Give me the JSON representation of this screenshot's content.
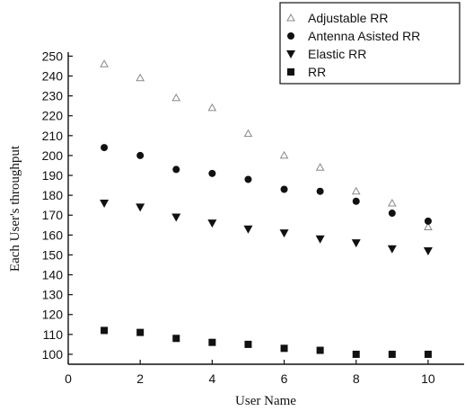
{
  "chart_data": {
    "type": "scatter",
    "title": "",
    "xlabel": "User Name",
    "ylabel": "Each User's throughput",
    "xlim": [
      0,
      11
    ],
    "ylim": [
      95,
      252
    ],
    "x_ticks": [
      0,
      2,
      4,
      6,
      8,
      10
    ],
    "y_ticks": [
      100,
      110,
      120,
      130,
      140,
      150,
      160,
      170,
      180,
      190,
      200,
      210,
      220,
      230,
      240,
      250
    ],
    "x": [
      1,
      2,
      3,
      4,
      5,
      6,
      7,
      8,
      9,
      10
    ],
    "grid": false,
    "legend_position": "top-right",
    "series": [
      {
        "name": "Adjustable RR",
        "marker": "open-triangle-up",
        "color": "#888888",
        "values": [
          246,
          239,
          229,
          224,
          211,
          200,
          194,
          182,
          176,
          164
        ]
      },
      {
        "name": "Antenna Asisted RR",
        "marker": "filled-circle",
        "color": "#111111",
        "values": [
          204,
          200,
          193,
          191,
          188,
          183,
          182,
          177,
          171,
          167
        ]
      },
      {
        "name": "Elastic RR",
        "marker": "filled-triangle-down",
        "color": "#111111",
        "values": [
          176,
          174,
          169,
          166,
          163,
          161,
          158,
          156,
          153,
          152
        ]
      },
      {
        "name": "RR",
        "marker": "filled-square",
        "color": "#111111",
        "values": [
          112,
          111,
          108,
          106,
          105,
          103,
          102,
          100,
          100,
          100
        ]
      }
    ]
  }
}
